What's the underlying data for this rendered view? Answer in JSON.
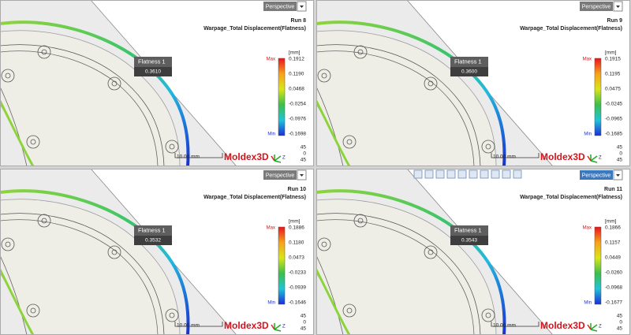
{
  "viewports": [
    {
      "view_mode": "Perspective",
      "run": "Run 8",
      "result": "Warpage_Total Displacement(Flatness)",
      "unit": "[mm]",
      "legend": {
        "max_label": "Max",
        "min_label": "Min",
        "values": [
          "0.1912",
          "0.1190",
          "0.0468",
          "-0.0254",
          "-0.0976",
          "-0.1698"
        ]
      },
      "probe": {
        "name": "Flatness 1",
        "value": "0.3610"
      },
      "scale_bar": "10.00 mm",
      "view_angles": [
        "45",
        "0",
        "45"
      ],
      "logo": "Moldex3D",
      "triad_label": "Z"
    },
    {
      "view_mode": "Perspective",
      "run": "Run 9",
      "result": "Warpage_Total Displacement(Flatness)",
      "unit": "[mm]",
      "legend": {
        "max_label": "Max",
        "min_label": "Min",
        "values": [
          "0.1915",
          "0.1195",
          "0.0475",
          "-0.0245",
          "-0.0965",
          "-0.1685"
        ]
      },
      "probe": {
        "name": "Flatness 1",
        "value": "0.3600"
      },
      "scale_bar": "10.00 mm",
      "view_angles": [
        "45",
        "0",
        "45"
      ],
      "logo": "Moldex3D",
      "triad_label": "Z"
    },
    {
      "view_mode": "Perspective",
      "run": "Run 10",
      "result": "Warpage_Total Displacement(Flatness)",
      "unit": "[mm]",
      "legend": {
        "max_label": "Max",
        "min_label": "Min",
        "values": [
          "0.1886",
          "0.1180",
          "0.0473",
          "-0.0233",
          "-0.0939",
          "-0.1646"
        ]
      },
      "probe": {
        "name": "Flatness 1",
        "value": "0.3532"
      },
      "scale_bar": "10.00 mm",
      "view_angles": [
        "45",
        "0",
        "45"
      ],
      "logo": "Moldex3D",
      "triad_label": "Z"
    },
    {
      "view_mode": "Perspective",
      "run": "Run 11",
      "result": "Warpage_Total Displacement(Flatness)",
      "unit": "[mm]",
      "legend": {
        "max_label": "Max",
        "min_label": "Min",
        "values": [
          "0.1866",
          "0.1157",
          "0.0449",
          "-0.0260",
          "-0.0968",
          "-0.1677"
        ]
      },
      "probe": {
        "name": "Flatness 1",
        "value": "0.3543"
      },
      "scale_bar": "10.00 mm",
      "view_angles": [
        "45",
        "0",
        "45"
      ],
      "logo": "Moldex3D",
      "triad_label": "Z"
    }
  ]
}
